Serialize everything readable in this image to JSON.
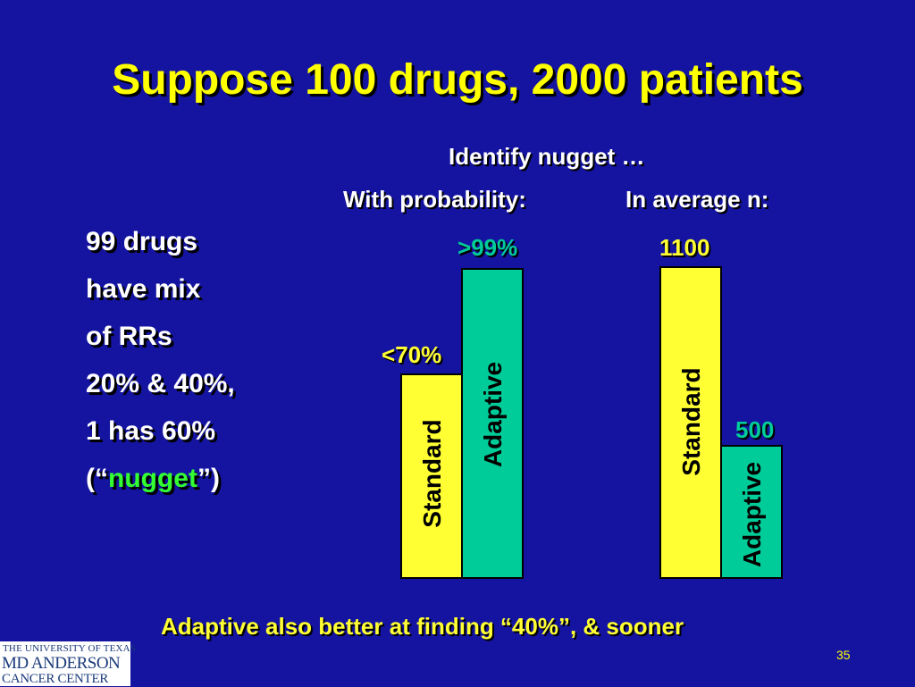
{
  "title": "Suppose 100 drugs, 2000 patients",
  "subheading": "Identify nugget …",
  "col_heads": {
    "probability": "With probability:",
    "average": "In average n:"
  },
  "left_text": {
    "line1": "99 drugs",
    "line2": "have mix",
    "line3": "of RRs",
    "line4": "20% & 40%,",
    "line5": "1 has 60%",
    "line6_open": "(“",
    "line6_word": "nugget",
    "line6_close": "”)"
  },
  "probability_chart": {
    "standard_label": "Standard",
    "adaptive_label": "Adaptive",
    "standard_value_prefix": "<",
    "standard_value": "70%",
    "adaptive_value_prefix": ">",
    "adaptive_value": "99%",
    "standard_fraction": 0.7,
    "adaptive_fraction": 0.99
  },
  "average_chart": {
    "standard_label": "Standard",
    "adaptive_label": "Adaptive",
    "standard_value": "1100",
    "adaptive_value": "500",
    "standard_n": 1100,
    "adaptive_n": 500
  },
  "footer": "Adaptive also better at finding “40%”, & sooner",
  "page_number": "35",
  "logo": {
    "line1": "THE UNIVERSITY OF TEXAS",
    "line2": "MD ANDERSON",
    "line3": "CANCER CENTER"
  },
  "colors": {
    "background": "#1414a0",
    "title": "#ffff00",
    "standard_bar": "#ffff33",
    "adaptive_bar": "#00cc99",
    "nugget": "#33ff33"
  }
}
